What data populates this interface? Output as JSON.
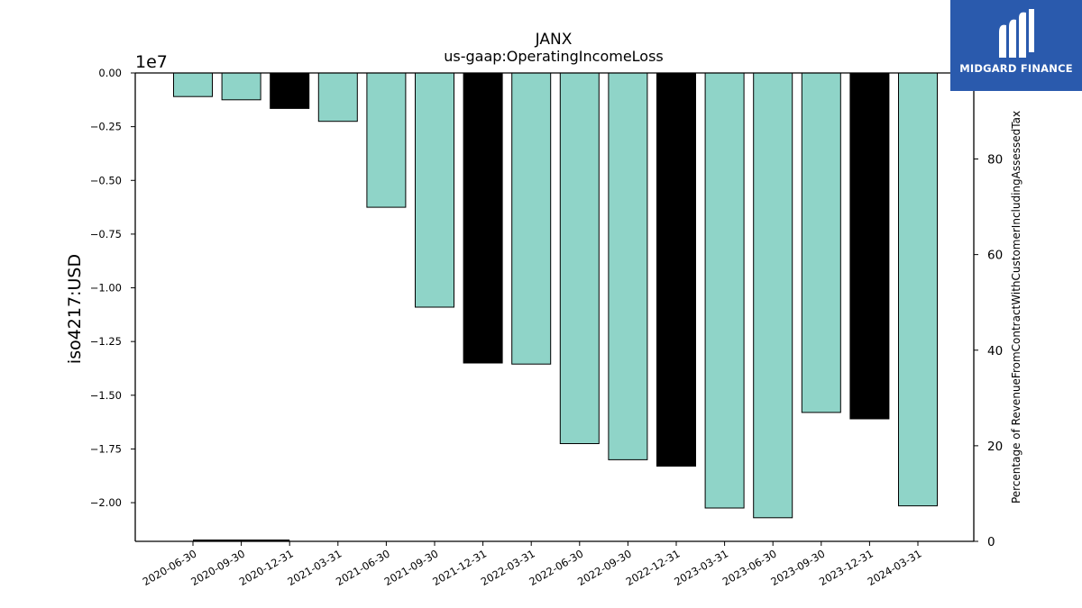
{
  "chart_data": {
    "type": "bar",
    "title": "JANX",
    "subtitle": "us-gaap:OperatingIncomeLoss",
    "ylabel": "iso4217:USD",
    "y_offset_label": "1e7",
    "y2label": "Percentage of RevenueFromContractWithCustomerIncludingAssessedTax",
    "ylim": [
      -21800000,
      0
    ],
    "y2lim": [
      0,
      98
    ],
    "yticks": [
      "0.00",
      "−0.25",
      "−0.50",
      "−0.75",
      "−1.00",
      "−1.25",
      "−1.50",
      "−1.75",
      "−2.00"
    ],
    "ytick_values": [
      0,
      -2500000,
      -5000000,
      -7500000,
      -10000000,
      -12500000,
      -15000000,
      -17500000,
      -20000000
    ],
    "y2ticks": [
      "0",
      "20",
      "40",
      "60",
      "80"
    ],
    "y2tick_values": [
      0,
      20,
      40,
      60,
      80
    ],
    "categories": [
      "2020-06-30",
      "2020-09-30",
      "2020-12-31",
      "2021-03-31",
      "2021-06-30",
      "2021-09-30",
      "2021-12-31",
      "2022-03-31",
      "2022-06-30",
      "2022-09-30",
      "2022-12-31",
      "2023-03-31",
      "2023-06-30",
      "2023-09-30",
      "2023-12-31",
      "2024-03-31"
    ],
    "values": [
      -1100000,
      -1250000,
      -1650000,
      -2250000,
      -6250000,
      -10900000,
      -13500000,
      -13550000,
      -17250000,
      -18000000,
      -18300000,
      -20250000,
      -20700000,
      -15800000,
      -16100000,
      -20150000
    ],
    "bar_colors": [
      "#8fd4c8",
      "#8fd4c8",
      "#000000",
      "#8fd4c8",
      "#8fd4c8",
      "#8fd4c8",
      "#000000",
      "#8fd4c8",
      "#8fd4c8",
      "#8fd4c8",
      "#000000",
      "#8fd4c8",
      "#8fd4c8",
      "#8fd4c8",
      "#000000",
      "#8fd4c8"
    ],
    "percentage_series": {
      "values": [
        0,
        0,
        0,
        null,
        null,
        null,
        null,
        null,
        null,
        null,
        null,
        null,
        null,
        null,
        null,
        null
      ],
      "color": "#000000"
    }
  },
  "logo": {
    "text": "MIDGARD FINANCE",
    "background": "#2a5aad"
  }
}
